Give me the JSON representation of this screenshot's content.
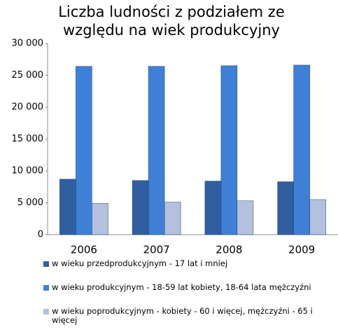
{
  "chart_data": {
    "type": "bar",
    "title": "Liczba ludności z podziałem ze względu na wiek produkcyjny",
    "categories": [
      "2006",
      "2007",
      "2008",
      "2009"
    ],
    "series": [
      {
        "name": "w wieku przedprodukcyjnym - 17 lat i mniej",
        "color": "#2f5f9f",
        "values": [
          8700,
          8500,
          8400,
          8300
        ]
      },
      {
        "name": "w wieku produkcyjnym - 18-59 lat kobiety, 18-64 lata mężczyźni",
        "color": "#3f80d6",
        "values": [
          26400,
          26400,
          26500,
          26600
        ]
      },
      {
        "name": "w wieku poprodukcyjnym - kobiety - 60 i więcej, mężczyźni - 65 i więcej",
        "color": "#b3c0de",
        "values": [
          4900,
          5100,
          5300,
          5500
        ]
      }
    ],
    "ylim": [
      0,
      30000
    ],
    "yticks": [
      0,
      {
        "value": 5000,
        "label": "5 000"
      },
      {
        "value": 10000,
        "label": "10 000"
      },
      {
        "value": 15000,
        "label": "15 000"
      },
      {
        "value": 20000,
        "label": "20 000"
      },
      {
        "value": 25000,
        "label": "25 000"
      },
      {
        "value": 30000,
        "label": "30 000"
      }
    ],
    "grid": false
  }
}
